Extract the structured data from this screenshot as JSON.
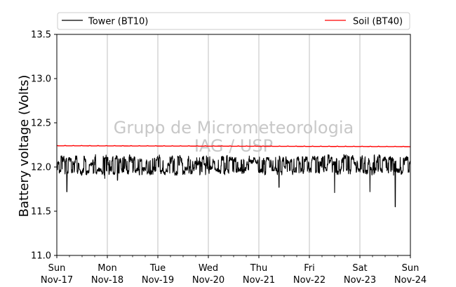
{
  "chart_data": {
    "type": "line",
    "ylabel": "Battery voltage (Volts)",
    "ylim": [
      11.0,
      13.5
    ],
    "yticks": [
      11.0,
      11.5,
      12.0,
      12.5,
      13.0,
      13.5
    ],
    "ytick_labels": [
      "11.0",
      "11.5",
      "12.0",
      "12.5",
      "13.0",
      "13.5"
    ],
    "xlim": [
      "2019-11-17",
      "2019-11-24"
    ],
    "xtick_labels": [
      [
        "Sun",
        "Nov-17"
      ],
      [
        "Mon",
        "Nov-18"
      ],
      [
        "Tue",
        "Nov-19"
      ],
      [
        "Wed",
        "Nov-20"
      ],
      [
        "Thu",
        "Nov-21"
      ],
      [
        "Fri",
        "Nov-22"
      ],
      [
        "Sat",
        "Nov-23"
      ],
      [
        "Sun",
        "Nov-24"
      ]
    ],
    "grid": "vertical",
    "legend_placement": "top, above plot",
    "watermark": [
      "Grupo de Micrometeorologia",
      "IAG / USP"
    ],
    "series": [
      {
        "name": "Tower (BT10)",
        "color": "#000000",
        "values_summary": "oscillates mostly between 11.93 and 12.12 V",
        "dips": [
          {
            "day": 0.2,
            "value": 11.72
          },
          {
            "day": 0.95,
            "value": 11.87
          },
          {
            "day": 1.2,
            "value": 11.85
          },
          {
            "day": 4.4,
            "value": 11.77
          },
          {
            "day": 5.5,
            "value": 11.71
          },
          {
            "day": 6.2,
            "value": 11.72
          },
          {
            "day": 6.7,
            "value": 11.55
          }
        ]
      },
      {
        "name": "Soil (BT40)",
        "color": "#ff0000",
        "start_value": 12.24,
        "end_value": 12.23
      }
    ]
  }
}
